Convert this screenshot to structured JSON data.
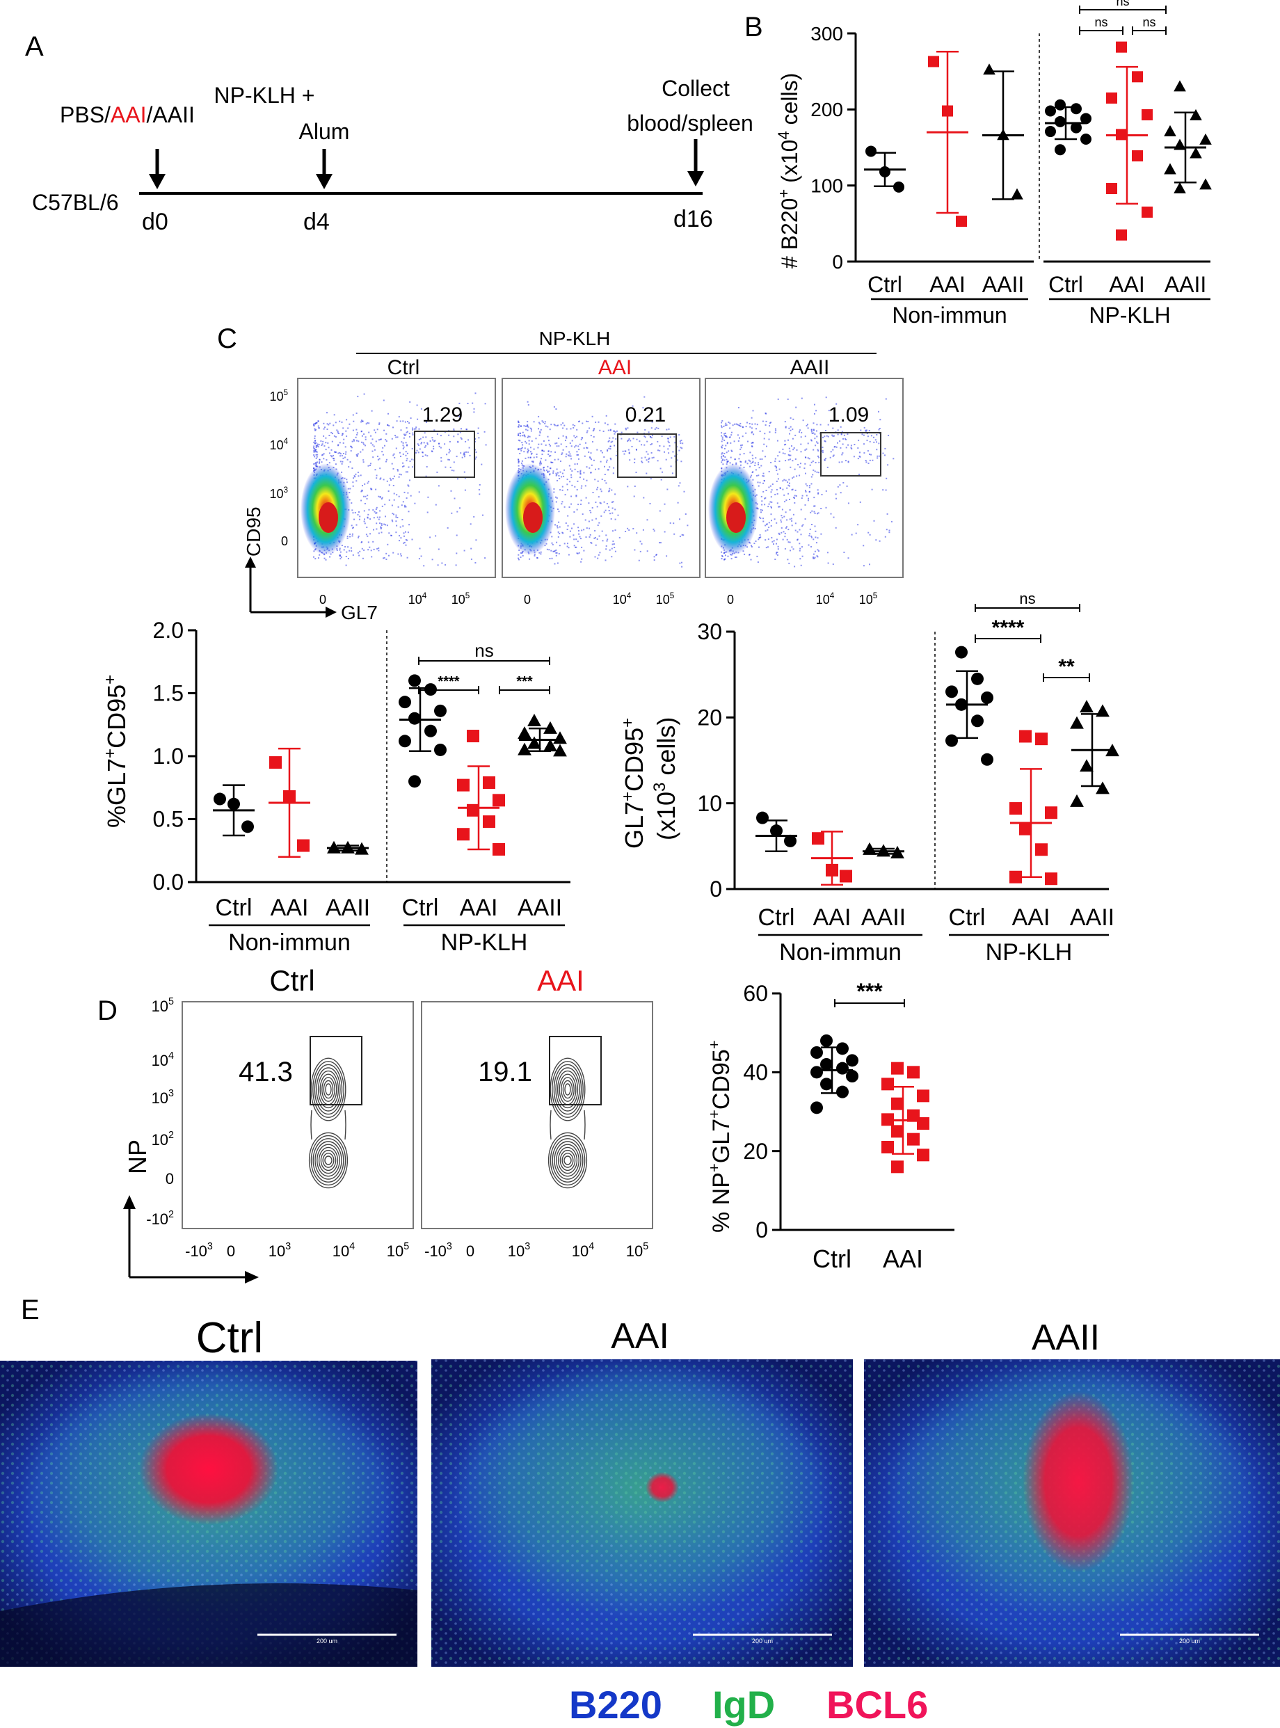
{
  "panels": {
    "a": "A",
    "b": "B",
    "c": "C",
    "d": "D",
    "e": "E"
  },
  "colors": {
    "black": "#000000",
    "red": "#e8141b",
    "b220": "#1438c8",
    "igd": "#22b04a",
    "bcl6": "#f0145a",
    "flow_density": "#2a37e6"
  },
  "timeline": {
    "strain": "C57BL/6",
    "treat_pre": "PBS/",
    "treat_aai": "AAI",
    "treat_post": "/AAII",
    "immun_line1": "NP-KLH +",
    "immun_line2": "Alum",
    "collect_line1": "Collect",
    "collect_line2": "blood/spleen",
    "day0": "d0",
    "day4": "d4",
    "day16": "d16"
  },
  "chart_data": [
    {
      "id": "B",
      "type": "scatter",
      "ylabel": "# B220+ (x10^4 cells)",
      "ylim": [
        0,
        300
      ],
      "yticks": [
        "0",
        "100",
        "200",
        "300"
      ],
      "categories": [
        "Ctrl",
        "AAI",
        "AAII",
        "Ctrl",
        "AAI",
        "AAII"
      ],
      "groups": [
        "Non-immun",
        "NP-KLH"
      ],
      "series": [
        {
          "group": "Non-immun",
          "label": "Ctrl",
          "marker": "circle",
          "color": "#000000",
          "mean": 121,
          "sd": 22,
          "points": [
            145,
            118,
            98
          ]
        },
        {
          "group": "Non-immun",
          "label": "AAI",
          "marker": "square",
          "color": "#e8141b",
          "mean": 170,
          "sd": 106,
          "points": [
            263,
            198,
            53
          ]
        },
        {
          "group": "Non-immun",
          "label": "AAII",
          "marker": "triangle",
          "color": "#000000",
          "mean": 166,
          "sd": 84,
          "points": [
            252,
            166,
            88
          ]
        },
        {
          "group": "NP-KLH",
          "label": "Ctrl",
          "marker": "circle",
          "color": "#000000",
          "mean": 182,
          "sd": 21,
          "points": [
            206,
            201,
            198,
            188,
            184,
            176,
            171,
            161,
            147
          ]
        },
        {
          "group": "NP-KLH",
          "label": "AAI",
          "marker": "square",
          "color": "#e8141b",
          "mean": 166,
          "sd": 90,
          "points": [
            282,
            243,
            215,
            193,
            167,
            139,
            96,
            65,
            35
          ]
        },
        {
          "group": "NP-KLH",
          "label": "AAII",
          "marker": "triangle",
          "color": "#000000",
          "mean": 150,
          "sd": 46,
          "points": [
            230,
            192,
            171,
            160,
            153,
            142,
            121,
            101,
            96
          ]
        }
      ],
      "significance": [
        "ns",
        "ns",
        "ns"
      ]
    },
    {
      "id": "C-flow",
      "type": "scatter",
      "header": "NP-KLH",
      "xlabel": "GL7",
      "ylabel": "CD95",
      "plots": [
        {
          "title": "Ctrl",
          "gate_percent": "1.29",
          "title_color": "#000000"
        },
        {
          "title": "AAI",
          "gate_percent": "0.21",
          "title_color": "#e8141b"
        },
        {
          "title": "AAII",
          "gate_percent": "1.09",
          "title_color": "#000000"
        }
      ]
    },
    {
      "id": "C-percent",
      "type": "scatter",
      "ylabel": "%GL7+CD95+",
      "ylim": [
        0,
        2.0
      ],
      "yticks": [
        "0.0",
        "0.5",
        "1.0",
        "1.5",
        "2.0"
      ],
      "categories": [
        "Ctrl",
        "AAI",
        "AAII",
        "Ctrl",
        "AAI",
        "AAII"
      ],
      "groups": [
        "Non-immun",
        "NP-KLH"
      ],
      "series": [
        {
          "group": "Non-immun",
          "label": "Ctrl",
          "marker": "circle",
          "color": "#000000",
          "mean": 0.57,
          "sd": 0.2,
          "points": [
            0.66,
            0.62,
            0.44
          ]
        },
        {
          "group": "Non-immun",
          "label": "AAI",
          "marker": "square",
          "color": "#e8141b",
          "mean": 0.63,
          "sd": 0.43,
          "points": [
            0.95,
            0.68,
            0.29
          ]
        },
        {
          "group": "Non-immun",
          "label": "AAII",
          "marker": "triangle",
          "color": "#000000",
          "mean": 0.27,
          "sd": 0.02,
          "points": [
            0.27,
            0.27,
            0.26
          ]
        },
        {
          "group": "NP-KLH",
          "label": "Ctrl",
          "marker": "circle",
          "color": "#000000",
          "mean": 1.29,
          "sd": 0.25,
          "points": [
            1.6,
            1.53,
            1.43,
            1.36,
            1.3,
            1.2,
            1.12,
            1.05,
            0.8
          ]
        },
        {
          "group": "NP-KLH",
          "label": "AAI",
          "marker": "square",
          "color": "#e8141b",
          "mean": 0.59,
          "sd": 0.33,
          "points": [
            1.16,
            0.79,
            0.77,
            0.65,
            0.57,
            0.48,
            0.38,
            0.26
          ]
        },
        {
          "group": "NP-KLH",
          "label": "AAII",
          "marker": "triangle",
          "color": "#000000",
          "mean": 1.13,
          "sd": 0.09,
          "points": [
            1.28,
            1.22,
            1.18,
            1.14,
            1.1,
            1.08,
            1.05,
            1.04
          ]
        }
      ],
      "significance": [
        "ns",
        "****",
        "***"
      ]
    },
    {
      "id": "C-count",
      "type": "scatter",
      "ylabel_line1": "GL7+CD95+",
      "ylabel_line2": "(x10^3 cells)",
      "ylim": [
        0,
        30
      ],
      "yticks": [
        "0",
        "10",
        "20",
        "30"
      ],
      "categories": [
        "Ctrl",
        "AAI",
        "AAII",
        "Ctrl",
        "AAI",
        "AAII"
      ],
      "groups": [
        "Non-immun",
        "NP-KLH"
      ],
      "series": [
        {
          "group": "Non-immun",
          "label": "Ctrl",
          "marker": "circle",
          "color": "#000000",
          "mean": 6.2,
          "sd": 1.8,
          "points": [
            8.3,
            6.8,
            5.6
          ]
        },
        {
          "group": "Non-immun",
          "label": "AAI",
          "marker": "square",
          "color": "#e8141b",
          "mean": 3.6,
          "sd": 3.1,
          "points": [
            5.9,
            2.2,
            1.5
          ]
        },
        {
          "group": "Non-immun",
          "label": "AAII",
          "marker": "triangle",
          "color": "#000000",
          "mean": 4.4,
          "sd": 0.3,
          "points": [
            4.6,
            4.4,
            4.2
          ]
        },
        {
          "group": "NP-KLH",
          "label": "Ctrl",
          "marker": "circle",
          "color": "#000000",
          "mean": 21.5,
          "sd": 3.9,
          "points": [
            27.6,
            24.5,
            23.0,
            22.3,
            21.5,
            19.6,
            17.3,
            15.1
          ]
        },
        {
          "group": "NP-KLH",
          "label": "AAI",
          "marker": "square",
          "color": "#e8141b",
          "mean": 7.7,
          "sd": 6.3,
          "points": [
            17.8,
            17.5,
            9.4,
            8.9,
            7.0,
            4.6,
            1.4,
            1.2
          ]
        },
        {
          "group": "NP-KLH",
          "label": "AAII",
          "marker": "triangle",
          "color": "#000000",
          "mean": 16.2,
          "sd": 4.2,
          "points": [
            21.2,
            20.7,
            19.3,
            16.1,
            14.3,
            11.7,
            10.2
          ]
        }
      ],
      "significance": [
        "ns",
        "****",
        "**"
      ]
    },
    {
      "id": "D-contour",
      "type": "scatter",
      "ylabel": "NP",
      "plots": [
        {
          "title": "Ctrl",
          "gate_percent": "41.3",
          "title_color": "#000000"
        },
        {
          "title": "AAI",
          "gate_percent": "19.1",
          "title_color": "#e8141b"
        }
      ]
    },
    {
      "id": "D-percent",
      "type": "scatter",
      "ylabel": "% NP+GL7+CD95+",
      "ylim": [
        0,
        60
      ],
      "yticks": [
        "0",
        "20",
        "40",
        "60"
      ],
      "categories": [
        "Ctrl",
        "AAI"
      ],
      "series": [
        {
          "label": "Ctrl",
          "marker": "circle",
          "color": "#000000",
          "mean": 40.5,
          "sd": 5.8,
          "points": [
            48,
            46,
            45,
            43,
            42,
            41,
            40,
            39,
            37,
            35,
            31
          ]
        },
        {
          "label": "AAI",
          "marker": "square",
          "color": "#e8141b",
          "mean": 27.8,
          "sd": 8.5,
          "points": [
            41,
            40,
            37,
            34,
            32,
            29,
            28,
            27,
            25,
            23,
            21,
            19,
            16
          ]
        }
      ],
      "significance": [
        "***"
      ]
    }
  ],
  "flow_axis": {
    "y_exp": [
      "5",
      "4",
      "3",
      "",
      ""
    ],
    "y_base": [
      "10",
      "10",
      "10",
      "0",
      ""
    ],
    "x_base": [
      "0",
      "10",
      "10"
    ],
    "x_exp": [
      "",
      "4",
      "5"
    ]
  },
  "contour_axis": {
    "y_labels": [
      "10",
      "10",
      "10",
      "10",
      "0",
      "-10"
    ],
    "y_exps": [
      "5",
      "4",
      "3",
      "2",
      "",
      "2"
    ],
    "x_labels": [
      "-10",
      "0",
      "10",
      "10",
      "10"
    ],
    "x_exps": [
      "3",
      "",
      "3",
      "4",
      "5"
    ]
  },
  "micrographs": {
    "titles": [
      "Ctrl",
      "AAI",
      "AAII"
    ],
    "scale": "200 um"
  },
  "legend": {
    "b220": "B220",
    "igd": "IgD",
    "bcl6": "BCL6"
  }
}
